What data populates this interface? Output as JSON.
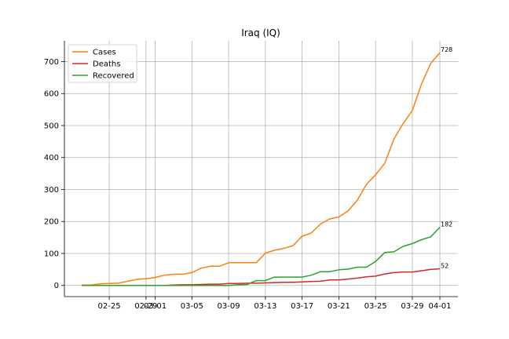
{
  "chart_data": {
    "type": "line",
    "title": "Iraq (IQ)",
    "xlabel": "",
    "ylabel": "",
    "x": [
      "02-22",
      "02-23",
      "02-24",
      "02-25",
      "02-26",
      "02-27",
      "02-28",
      "02-29",
      "03-01",
      "03-02",
      "03-03",
      "03-04",
      "03-05",
      "03-06",
      "03-07",
      "03-08",
      "03-09",
      "03-10",
      "03-11",
      "03-12",
      "03-13",
      "03-14",
      "03-15",
      "03-16",
      "03-17",
      "03-18",
      "03-19",
      "03-20",
      "03-21",
      "03-22",
      "03-23",
      "03-24",
      "03-25",
      "03-26",
      "03-27",
      "03-28",
      "03-29",
      "03-30",
      "03-31",
      "04-01"
    ],
    "x_tick_labels": [
      "02-25",
      "02-29",
      "03-01",
      "03-05",
      "03-09",
      "03-13",
      "03-17",
      "03-21",
      "03-25",
      "03-29",
      "04-01"
    ],
    "y_ticks": [
      0,
      100,
      200,
      300,
      400,
      500,
      600,
      700
    ],
    "ylim": [
      -35,
      765
    ],
    "grid": true,
    "legend": "top-left",
    "series": [
      {
        "name": "Cases",
        "color": "#ff7f0e",
        "values": [
          1,
          1,
          5,
          6,
          7,
          13,
          19,
          21,
          25,
          32,
          35,
          35,
          40,
          54,
          60,
          60,
          71,
          71,
          71,
          71,
          101,
          110,
          116,
          124,
          154,
          164,
          192,
          208,
          214,
          233,
          266,
          316,
          346,
          382,
          458,
          506,
          547,
          630,
          694,
          728
        ],
        "end_label": "728"
      },
      {
        "name": "Deaths",
        "color": "#d62728",
        "values": [
          0,
          0,
          0,
          0,
          0,
          0,
          0,
          0,
          0,
          0,
          1,
          2,
          2,
          3,
          4,
          4,
          6,
          6,
          7,
          7,
          8,
          9,
          10,
          10,
          11,
          12,
          13,
          17,
          17,
          20,
          23,
          27,
          29,
          36,
          40,
          42,
          42,
          46,
          50,
          52
        ],
        "end_label": "52"
      },
      {
        "name": "Recovered",
        "color": "#2ca02c",
        "values": [
          0,
          0,
          0,
          0,
          0,
          0,
          0,
          0,
          0,
          0,
          0,
          0,
          0,
          0,
          0,
          0,
          0,
          2,
          3,
          15,
          15,
          26,
          26,
          26,
          26,
          32,
          43,
          43,
          49,
          51,
          57,
          57,
          75,
          103,
          105,
          122,
          131,
          143,
          152,
          182
        ],
        "end_label": "182"
      }
    ]
  }
}
